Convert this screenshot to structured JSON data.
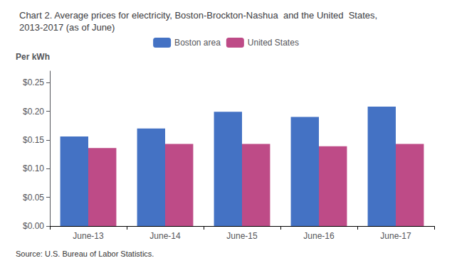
{
  "chart_data": {
    "type": "bar",
    "title": "Chart 2. Average prices for electricity, Boston-Brockton-Nashua  and the United  States,\n2013-2017 (as of June)",
    "ylabel": "Per kWh",
    "annotations": [
      "Source: U.S. Bureau of Labor Statistics."
    ],
    "categories": [
      "June-13",
      "June-14",
      "June-15",
      "June-16",
      "June-17"
    ],
    "series": [
      {
        "name": "Boston area",
        "color": "#4472C4",
        "values": [
          0.156,
          0.17,
          0.199,
          0.19,
          0.208
        ]
      },
      {
        "name": "United States",
        "color": "#BE4B87",
        "values": [
          0.136,
          0.143,
          0.143,
          0.139,
          0.143
        ]
      }
    ],
    "ylim": [
      0,
      0.27
    ],
    "yticks": [
      {
        "value": 0.0,
        "label": "$0.00"
      },
      {
        "value": 0.05,
        "label": "$0.05"
      },
      {
        "value": 0.1,
        "label": "$0.10"
      },
      {
        "value": 0.15,
        "label": "$0.15"
      },
      {
        "value": 0.2,
        "label": "$0.20"
      },
      {
        "value": 0.25,
        "label": "$0.25"
      }
    ],
    "grid": false,
    "legend": "top"
  }
}
